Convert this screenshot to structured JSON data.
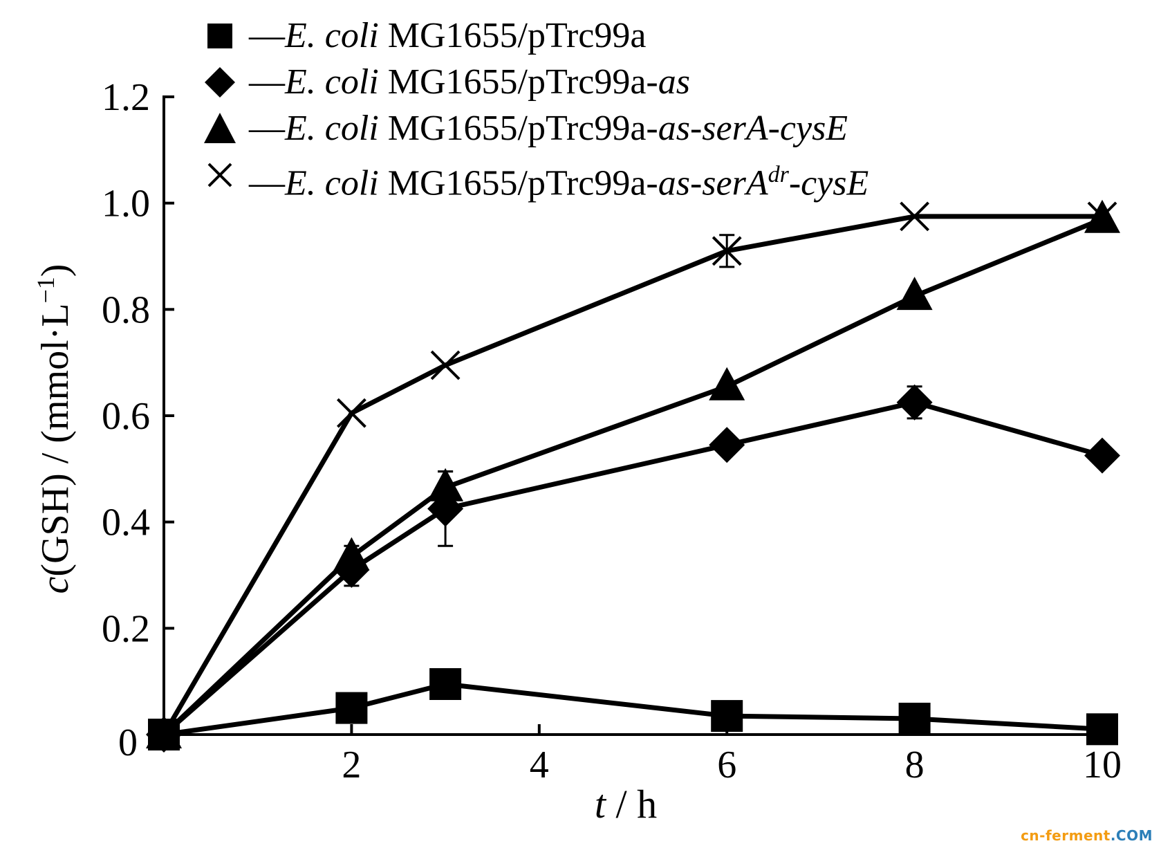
{
  "chart_data": {
    "type": "line",
    "x": [
      0,
      2,
      3,
      6,
      8,
      10
    ],
    "xlabel": "t / h",
    "ylabel": "c(GSH) / (mmol·L⁻¹)",
    "xlim": [
      0,
      10
    ],
    "ylim": [
      0,
      1.2
    ],
    "xticks": [
      2,
      4,
      6,
      8,
      10
    ],
    "yticks": [
      0.2,
      0.4,
      0.6,
      0.8,
      1.0,
      1.2
    ],
    "origin_label": "0",
    "grid": false,
    "legend_position": "top-left",
    "series": [
      {
        "name": "E. coli MG1655/pTrc99a",
        "marker": "square",
        "values": [
          0.0,
          0.05,
          0.095,
          0.035,
          0.03,
          0.01
        ],
        "err": [
          0,
          0,
          0,
          0,
          0,
          0
        ]
      },
      {
        "name": "E. coli MG1655/pTrc99a-as",
        "marker": "diamond",
        "values": [
          0.0,
          0.31,
          0.425,
          0.545,
          0.625,
          0.525
        ],
        "err": [
          0,
          0.03,
          0.07,
          0,
          0.03,
          0
        ]
      },
      {
        "name": "E. coli MG1655/pTrc99a-as-serA-cysE",
        "marker": "triangle",
        "values": [
          0.0,
          0.335,
          0.465,
          0.655,
          0.825,
          0.97
        ],
        "err": [
          0,
          0.02,
          0.03,
          0,
          0,
          0
        ]
      },
      {
        "name": "E. coli MG1655/pTrc99a-as-serAdr-cysE",
        "marker": "cross",
        "values": [
          0.0,
          0.605,
          0.695,
          0.91,
          0.975,
          0.975
        ],
        "err": [
          0,
          0,
          0,
          0.03,
          0,
          0
        ]
      }
    ]
  },
  "legend": {
    "dash": "—",
    "items": [
      {
        "italic_part": "E. coli",
        "plain_part": " MG1655/pTrc99a",
        "italic_suffix": "",
        "sup": "",
        "tail": ""
      },
      {
        "italic_part": "E. coli",
        "plain_part": " MG1655/pTrc99a-",
        "italic_suffix": "as",
        "sup": "",
        "tail": ""
      },
      {
        "italic_part": "E. coli",
        "plain_part": " MG1655/pTrc99a-",
        "italic_suffix": "as-serA-cysE",
        "sup": "",
        "tail": ""
      },
      {
        "italic_part": "E. coli",
        "plain_part": " MG1655/pTrc99a-",
        "italic_suffix": "as-serA",
        "sup": "dr",
        "tail": "-cysE"
      }
    ]
  },
  "axis_text": {
    "x_italic": "t",
    "x_rest": " / h",
    "y_italic": "c",
    "y_rest": "(GSH) / (mmol·L",
    "y_sup": "−1",
    "y_close": ")"
  },
  "watermark": {
    "part1": "cn-ferment",
    "part2": ".COM"
  }
}
